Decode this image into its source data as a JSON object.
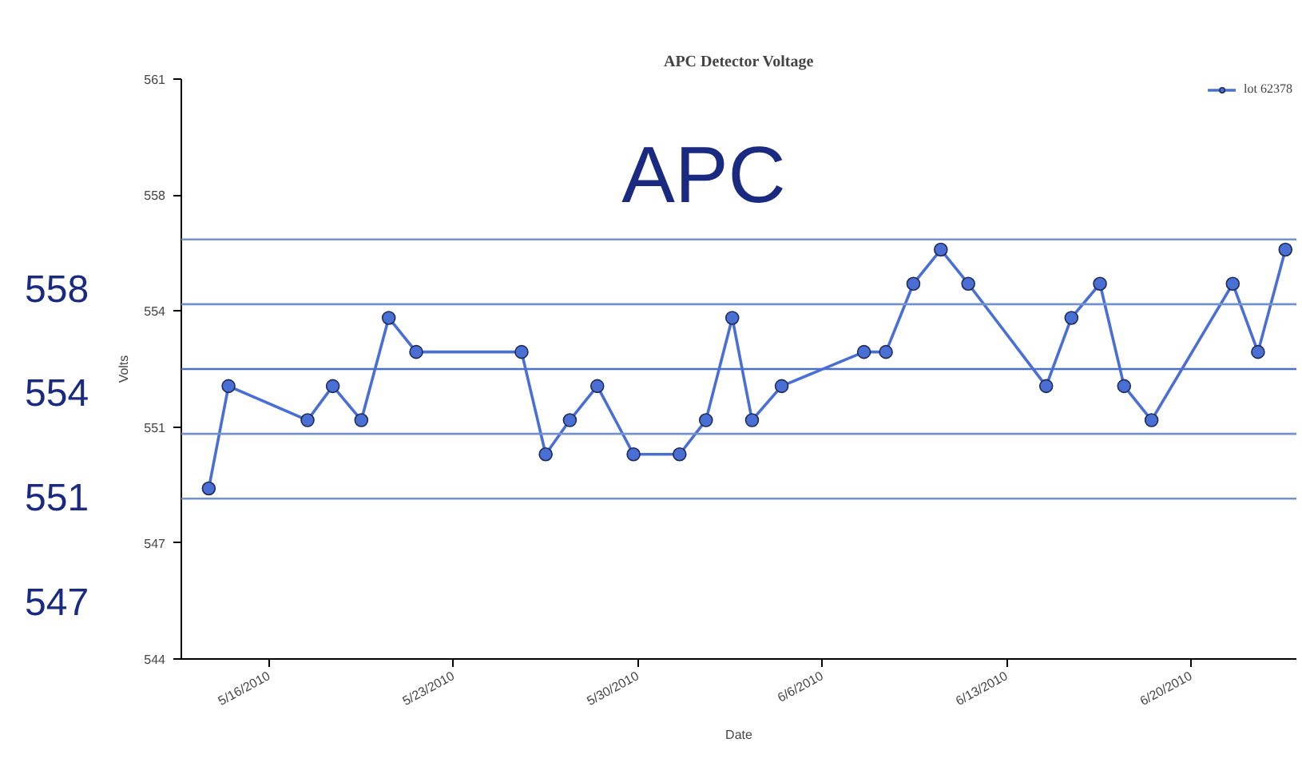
{
  "chart_data": {
    "type": "line",
    "title": "APC Detector Voltage",
    "xlabel": "Date",
    "ylabel": "Volts",
    "annotations": [
      "APC",
      "558",
      "554",
      "551",
      "547"
    ],
    "x": [
      "2010-05-13T17:00",
      "2010-05-14T11:00",
      "2010-05-17T11:00",
      "2010-05-18T10:00",
      "2010-05-19T12:00",
      "2010-05-20T13:00",
      "2010-05-21T14:00",
      "2010-05-25T14:00",
      "2010-05-26T12:00",
      "2010-05-27T10:00",
      "2010-05-28T11:00",
      "2010-05-29T20:00",
      "2010-05-31T14:00",
      "2010-06-01T14:00",
      "2010-06-02T14:00",
      "2010-06-03T08:00",
      "2010-06-04T11:00",
      "2010-06-07T14:00",
      "2010-06-08T10:00",
      "2010-06-09T11:00",
      "2010-06-10T12:00",
      "2010-06-11T13:00",
      "2010-06-14T12:00",
      "2010-06-15T11:00",
      "2010-06-16T13:00",
      "2010-06-17T11:00",
      "2010-06-18T12:00",
      "2010-06-21T14:00",
      "2010-06-22T13:00",
      "2010-06-23T14:00"
    ],
    "series": [
      {
        "name": "lot 62378",
        "color": "#4a6fd4",
        "values": [
          549,
          552,
          551,
          552,
          551,
          554,
          553,
          553,
          550,
          551,
          552,
          550,
          550,
          551,
          554,
          551,
          552,
          553,
          553,
          555,
          556,
          555,
          552,
          554,
          555,
          552,
          551,
          555,
          553,
          556
        ]
      }
    ],
    "ref_lines": [
      {
        "axis": "y",
        "value": 556.3,
        "color": "#7391cc"
      },
      {
        "axis": "y",
        "value": 554.4,
        "color": "#7391cc"
      },
      {
        "axis": "y",
        "value": 552.5,
        "color": "#4a6fd4"
      },
      {
        "axis": "y",
        "value": 550.6,
        "color": "#7391cc"
      },
      {
        "axis": "y",
        "value": 548.7,
        "color": "#7391cc"
      }
    ],
    "xlim": [
      "2010-05-12T16:00",
      "2010-06-24T00:00"
    ],
    "xticks": [
      {
        "value": "2010-05-16",
        "label": "5/16/2010"
      },
      {
        "value": "2010-05-23",
        "label": "5/23/2010"
      },
      {
        "value": "2010-05-30",
        "label": "5/30/2010"
      },
      {
        "value": "2010-06-06",
        "label": "6/6/2010"
      },
      {
        "value": "2010-06-13",
        "label": "6/13/2010"
      },
      {
        "value": "2010-06-20",
        "label": "6/20/2010"
      }
    ],
    "ylim": [
      544,
      561
    ],
    "yticks": [
      544,
      {
        "value": 547.4,
        "label": "547"
      },
      {
        "value": 550.8,
        "label": "551"
      },
      {
        "value": 554.2,
        "label": "554"
      },
      {
        "value": 557.6,
        "label": "558"
      },
      561
    ],
    "grid": false,
    "legend": "top right",
    "marker": "circle",
    "line_style": "solid"
  }
}
